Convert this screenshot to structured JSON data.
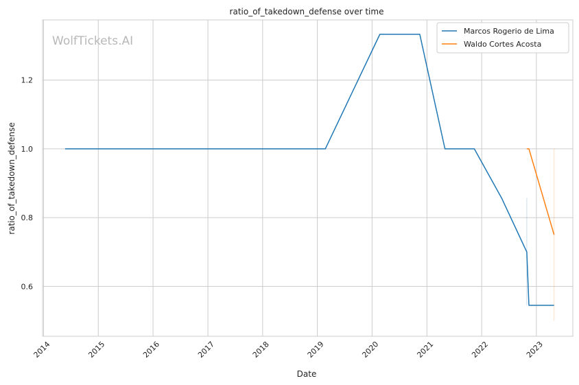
{
  "chart_data": {
    "type": "line",
    "title": "ratio_of_takedown_defense over time",
    "xlabel": "Date",
    "ylabel": "ratio_of_takedown_defense",
    "watermark": "WolfTickets.AI",
    "x_ticks": [
      "2014",
      "2015",
      "2016",
      "2017",
      "2018",
      "2019",
      "2020",
      "2021",
      "2022",
      "2023"
    ],
    "y_ticks": [
      "0.6",
      "0.8",
      "1.0",
      "1.2"
    ],
    "xlim": [
      "2013-12-25",
      "2023-09-01"
    ],
    "ylim": [
      0.455,
      1.375
    ],
    "grid": true,
    "legend": "top-right",
    "series": [
      {
        "name": "Marcos Rogerio de Lima",
        "color": "#1f77b4",
        "points": [
          {
            "x": "2014-05-24",
            "y": 1.0
          },
          {
            "x": "2019-02-23",
            "y": 1.0
          },
          {
            "x": "2020-02-22",
            "y": 1.333
          },
          {
            "x": "2020-11-14",
            "y": 1.333
          },
          {
            "x": "2021-05-01",
            "y": 1.0
          },
          {
            "x": "2021-11-13",
            "y": 1.0
          },
          {
            "x": "2022-05-14",
            "y": 0.857
          },
          {
            "x": "2022-10-29",
            "y": 0.7
          },
          {
            "x": "2022-11-12",
            "y": 0.545
          },
          {
            "x": "2023-04-29",
            "y": 0.545
          }
        ],
        "band": {
          "x": "2022-10-29",
          "y_low": 0.545,
          "y_high": 0.857
        }
      },
      {
        "name": "Waldo Cortes Acosta",
        "color": "#ff7f0e",
        "points": [
          {
            "x": "2022-10-29",
            "y": 1.0
          },
          {
            "x": "2022-11-12",
            "y": 1.0
          },
          {
            "x": "2023-04-29",
            "y": 0.75
          }
        ],
        "band": {
          "x": "2023-04-29",
          "y_low": 0.5,
          "y_high": 1.0
        }
      }
    ]
  }
}
